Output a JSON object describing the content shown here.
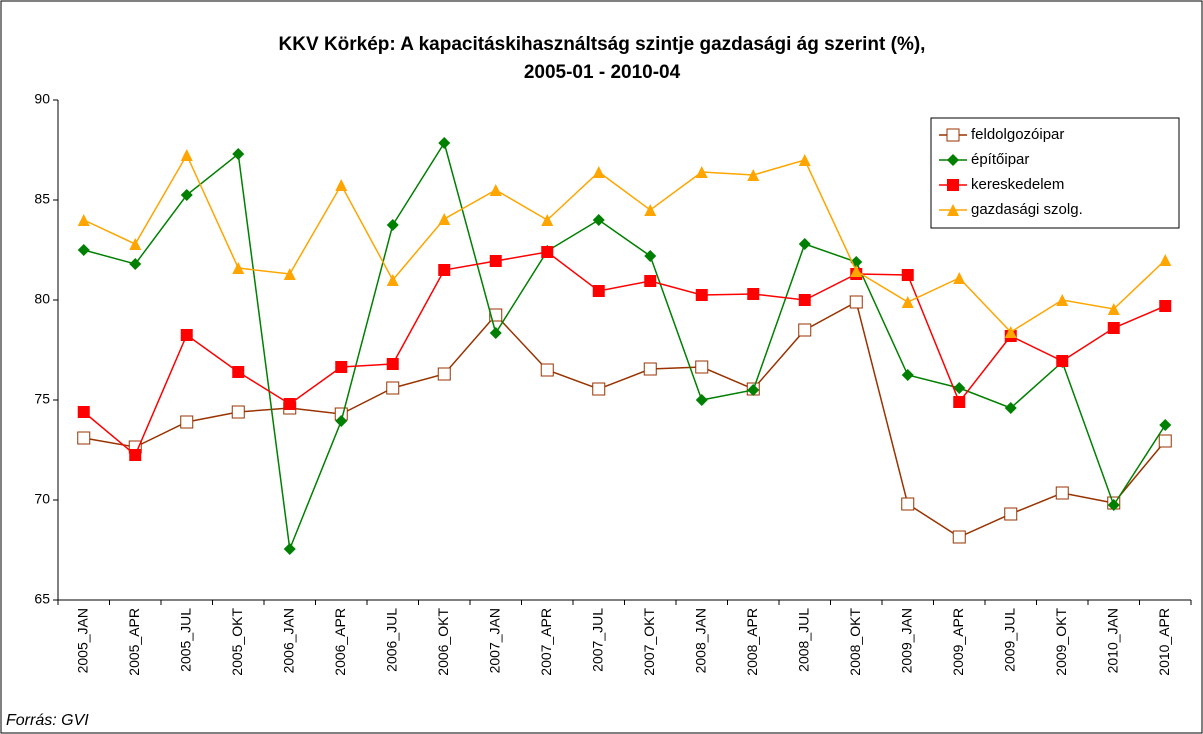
{
  "chart_data": {
    "type": "line",
    "title": [
      "KKV Körkép: A kapacitáskihasználtság szintje gazdasági ág szerint (%),",
      "2005-01 - 2010-04"
    ],
    "source": "Forrás: GVI",
    "categories": [
      "2005_JAN",
      "2005_APR",
      "2005_JUL",
      "2005_OKT",
      "2006_JAN",
      "2006_APR",
      "2006_JUL",
      "2006_OKT",
      "2007_JAN",
      "2007_APR",
      "2007_JUL",
      "2007_OKT",
      "2008_JAN",
      "2008_APR",
      "2008_JUL",
      "2008_OKT",
      "2009_JAN",
      "2009_APR",
      "2009_JUL",
      "2009_OKT",
      "2010_JAN",
      "2010_APR"
    ],
    "series": [
      {
        "name": "feldolgozóipar",
        "color": "#993300",
        "marker": "square-open",
        "values": [
          73.1,
          72.65,
          73.9,
          74.4,
          74.6,
          74.3,
          75.6,
          76.3,
          79.25,
          76.5,
          75.55,
          76.55,
          76.65,
          75.55,
          78.5,
          79.9,
          69.8,
          68.15,
          69.3,
          70.35,
          69.85,
          72.95
        ]
      },
      {
        "name": "építőipar",
        "color": "#008000",
        "marker": "diamond",
        "values": [
          82.5,
          81.8,
          85.25,
          87.3,
          67.55,
          73.95,
          83.75,
          87.85,
          78.35,
          82.45,
          84.0,
          82.2,
          75.0,
          75.5,
          82.8,
          81.9,
          76.25,
          75.6,
          74.6,
          76.9,
          69.75,
          73.75
        ]
      },
      {
        "name": "kereskedelem",
        "color": "#ff0000",
        "marker": "square",
        "values": [
          74.4,
          72.25,
          78.25,
          76.4,
          74.8,
          76.65,
          76.8,
          81.5,
          81.95,
          82.4,
          80.45,
          80.95,
          80.25,
          80.3,
          80.0,
          81.3,
          81.25,
          74.9,
          78.2,
          76.95,
          78.6,
          79.7
        ]
      },
      {
        "name": "gazdasági szolg.",
        "color": "#ffa500",
        "marker": "triangle",
        "values": [
          84.0,
          82.8,
          87.25,
          81.6,
          81.3,
          85.75,
          81.0,
          84.05,
          85.5,
          84.0,
          86.4,
          84.5,
          86.4,
          86.25,
          87.0,
          81.45,
          79.9,
          81.1,
          78.4,
          80.0,
          79.55,
          82.0
        ]
      }
    ],
    "ylim": [
      65,
      90
    ],
    "yticks": [
      65,
      70,
      75,
      80,
      85,
      90
    ],
    "legend": "top-right",
    "grid": false
  }
}
